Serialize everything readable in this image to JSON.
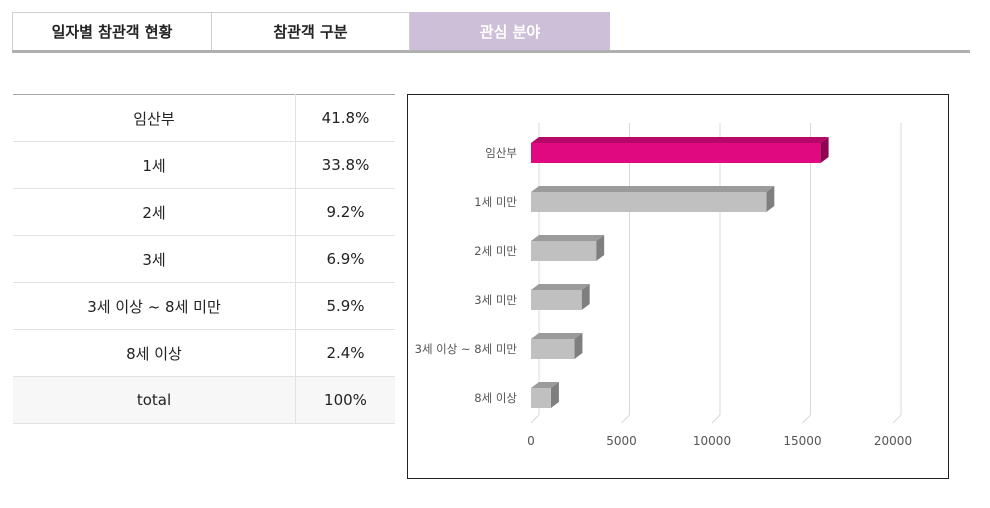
{
  "tabs": [
    {
      "label": "일자별 참관객 현황",
      "active": false
    },
    {
      "label": "참관객 구분",
      "active": false
    },
    {
      "label": "관심 분야",
      "active": true
    }
  ],
  "table": {
    "rows": [
      {
        "label": "임산부",
        "value": "41.8%"
      },
      {
        "label": "1세",
        "value": "33.8%"
      },
      {
        "label": "2세",
        "value": "9.2%"
      },
      {
        "label": "3세",
        "value": "6.9%"
      },
      {
        "label": "3세 이상 ~ 8세 미만",
        "value": "5.9%"
      },
      {
        "label": "8세 이상",
        "value": "2.4%"
      }
    ],
    "total": {
      "label": "total",
      "value": "100%"
    }
  },
  "chart_data": {
    "type": "bar",
    "orientation": "horizontal",
    "categories": [
      "임산부",
      "1세 미만",
      "2세 미만",
      "3세 미만",
      "3세 이상 ~ 8세 미만",
      "8세 이상"
    ],
    "values": [
      16000,
      13000,
      3600,
      2800,
      2400,
      1100
    ],
    "xlim": [
      0,
      20000
    ],
    "xticks": [
      "0",
      "5000",
      "10000",
      "15000",
      "20000"
    ],
    "grid": true,
    "colors": {
      "highlight": "#e0097f",
      "default": "#c0c0c0"
    },
    "highlight_index": 0
  }
}
